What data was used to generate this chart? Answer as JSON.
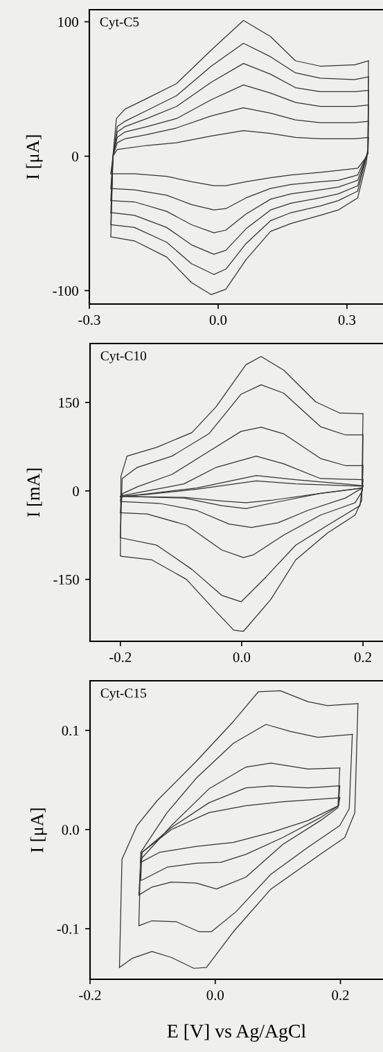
{
  "chart_data": [
    {
      "type": "line",
      "title": "Cyt-C5",
      "ylabel": "I [μA]",
      "xlim": [
        -0.3,
        0.384
      ],
      "ylim": [
        -110,
        109
      ],
      "xticks": [
        {
          "value": -0.3,
          "label": "-0.3"
        },
        {
          "value": 0,
          "label": "0.0"
        },
        {
          "value": 0.3,
          "label": "0.3"
        }
      ],
      "yticks": [
        {
          "value": -100,
          "label": "-100"
        },
        {
          "value": 0,
          "label": "0"
        },
        {
          "value": 100,
          "label": "100"
        }
      ],
      "series": [
        {
          "color": "#333333",
          "x": [
            -0.25,
            -0.245,
            -0.237,
            -0.217,
            -0.166,
            -0.097,
            -0.016,
            0.059,
            0.122,
            0.18,
            0.238,
            0.318,
            0.35
          ],
          "values": [
            -60,
            0,
            28,
            35,
            43,
            54,
            79,
            101,
            89,
            71,
            67,
            68,
            71
          ]
        },
        {
          "color": "#333333",
          "x": [
            0.35,
            0.349,
            0.345,
            0.325,
            0.28,
            0.238,
            0.17,
            0.122,
            0.065,
            0.018,
            -0.016,
            -0.062,
            -0.12,
            -0.195,
            -0.25
          ],
          "values": [
            71,
            5,
            -5,
            -31,
            -40,
            -44,
            -50,
            -56,
            -77,
            -99,
            -103,
            -94,
            -75,
            -63,
            -60
          ]
        },
        {
          "color": "#333333",
          "x": [
            -0.25,
            -0.245,
            -0.235,
            -0.217,
            -0.166,
            -0.097,
            -0.016,
            0.059,
            0.122,
            0.18,
            0.238,
            0.318,
            0.35
          ],
          "values": [
            -51,
            0,
            22,
            26,
            34,
            45,
            67,
            84,
            74,
            62,
            58,
            57,
            59
          ]
        },
        {
          "color": "#333333",
          "x": [
            0.35,
            0.349,
            0.342,
            0.325,
            0.28,
            0.238,
            0.17,
            0.122,
            0.065,
            0.018,
            -0.01,
            -0.062,
            -0.12,
            -0.195,
            -0.25
          ],
          "values": [
            59,
            5,
            -5,
            -26,
            -33,
            -37,
            -42,
            -48,
            -65,
            -84,
            -88,
            -80,
            -64,
            -53,
            -51
          ]
        },
        {
          "color": "#333333",
          "x": [
            -0.25,
            -0.245,
            -0.235,
            -0.217,
            -0.166,
            -0.097,
            -0.016,
            0.059,
            0.122,
            0.18,
            0.238,
            0.318,
            0.35
          ],
          "values": [
            -42,
            0,
            18,
            22,
            28,
            37,
            55,
            69,
            61,
            51,
            48,
            48,
            49
          ]
        },
        {
          "color": "#333333",
          "x": [
            0.35,
            0.349,
            0.342,
            0.325,
            0.28,
            0.238,
            0.17,
            0.122,
            0.065,
            0.018,
            -0.01,
            -0.062,
            -0.12,
            -0.195,
            -0.25
          ],
          "values": [
            49,
            4,
            -4,
            -22,
            -28,
            -31,
            -35,
            -40,
            -54,
            -70,
            -73,
            -66,
            -53,
            -44,
            -42
          ]
        },
        {
          "color": "#333333",
          "x": [
            -0.25,
            -0.245,
            -0.235,
            -0.217,
            -0.166,
            -0.097,
            -0.016,
            0.059,
            0.122,
            0.18,
            0.238,
            0.318,
            0.35
          ],
          "values": [
            -33,
            0,
            14,
            18,
            22,
            28,
            42,
            53,
            47,
            40,
            37,
            37,
            38
          ]
        },
        {
          "color": "#333333",
          "x": [
            0.35,
            0.349,
            0.342,
            0.325,
            0.28,
            0.238,
            0.17,
            0.122,
            0.065,
            0.018,
            -0.01,
            -0.062,
            -0.12,
            -0.195,
            -0.25
          ],
          "values": [
            38,
            3,
            -3,
            -18,
            -23,
            -25,
            -28,
            -32,
            -43,
            -55,
            -57,
            -51,
            -41,
            -34,
            -33
          ]
        },
        {
          "color": "#333333",
          "x": [
            -0.25,
            -0.245,
            -0.235,
            -0.217,
            -0.166,
            -0.097,
            -0.016,
            0.059,
            0.122,
            0.18,
            0.238,
            0.318,
            0.35
          ],
          "values": [
            -24,
            0,
            10,
            13,
            16,
            21,
            30,
            36,
            32,
            27,
            25,
            25,
            26
          ]
        },
        {
          "color": "#333333",
          "x": [
            0.35,
            0.349,
            0.342,
            0.325,
            0.28,
            0.238,
            0.17,
            0.122,
            0.065,
            0.018,
            -0.01,
            -0.062,
            -0.12,
            -0.195,
            -0.25
          ],
          "values": [
            26,
            2,
            -2,
            -14,
            -18,
            -19,
            -21,
            -24,
            -31,
            -39,
            -40,
            -36,
            -29,
            -25,
            -24
          ]
        },
        {
          "color": "#333333",
          "x": [
            -0.25,
            -0.245,
            -0.235,
            -0.166,
            -0.097,
            -0.016,
            0.059,
            0.122,
            0.18,
            0.238,
            0.318,
            0.35
          ],
          "values": [
            -13,
            0,
            5,
            8,
            10,
            15,
            19,
            17,
            14,
            13,
            13,
            14
          ]
        },
        {
          "color": "#333333",
          "x": [
            0.35,
            0.349,
            0.342,
            0.325,
            0.238,
            0.17,
            0.122,
            0.065,
            0.018,
            -0.01,
            -0.062,
            -0.12,
            -0.195,
            -0.25
          ],
          "values": [
            14,
            2,
            -2,
            -9,
            -12,
            -14,
            -16,
            -19,
            -22,
            -22,
            -19,
            -15,
            -13,
            -13
          ]
        }
      ]
    },
    {
      "type": "line",
      "title": "Cyt-C10",
      "ylabel": "I [mA]",
      "xlim": [
        -0.25,
        0.233
      ],
      "ylim": [
        -255,
        250
      ],
      "xticks": [
        {
          "value": -0.2,
          "label": "-0.2"
        },
        {
          "value": 0,
          "label": "0.0"
        },
        {
          "value": 0.2,
          "label": "0.2"
        }
      ],
      "yticks": [
        {
          "value": -150,
          "label": "-150"
        },
        {
          "value": 0,
          "label": "0"
        },
        {
          "value": 150,
          "label": "150"
        }
      ],
      "series": [
        {
          "color": "#333333",
          "x": [
            -0.2,
            -0.199,
            -0.189,
            -0.14,
            -0.082,
            -0.042,
            0.007,
            0.032,
            0.069,
            0.122,
            0.162,
            0.2
          ],
          "values": [
            -110,
            25,
            59,
            74,
            99,
            143,
            214,
            228,
            205,
            151,
            132,
            131
          ]
        },
        {
          "color": "#333333",
          "x": [
            0.2,
            0.198,
            0.187,
            0.142,
            0.089,
            0.048,
            0.003,
            -0.013,
            -0.042,
            -0.091,
            -0.148,
            -0.197,
            -0.2
          ],
          "values": [
            131,
            -16,
            -41,
            -71,
            -117,
            -184,
            -238,
            -236,
            -205,
            -150,
            -117,
            -111,
            -110
          ]
        },
        {
          "color": "#333333",
          "x": [
            -0.2,
            -0.197,
            -0.172,
            -0.115,
            -0.054,
            -0.001,
            0.032,
            0.069,
            0.13,
            0.171,
            0.2
          ],
          "values": [
            -79,
            21,
            40,
            59,
            97,
            164,
            180,
            166,
            109,
            95,
            95
          ]
        },
        {
          "color": "#333333",
          "x": [
            0.2,
            0.199,
            0.195,
            0.142,
            0.089,
            0.04,
            -0.001,
            -0.033,
            -0.082,
            -0.14,
            -0.197,
            -0.2
          ],
          "values": [
            95,
            10,
            -25,
            -58,
            -92,
            -146,
            -188,
            -177,
            -133,
            -92,
            -80,
            -79
          ]
        },
        {
          "color": "#333333",
          "x": [
            -0.2,
            -0.197,
            -0.172,
            -0.115,
            -0.054,
            -0.001,
            0.032,
            0.069,
            0.13,
            0.171,
            0.2
          ],
          "values": [
            -36,
            -5,
            7,
            28,
            67,
            101,
            108,
            97,
            55,
            43,
            43
          ]
        },
        {
          "color": "#333333",
          "x": [
            0.2,
            0.199,
            0.187,
            0.13,
            0.069,
            0.02,
            0.003,
            -0.033,
            -0.091,
            -0.156,
            -0.2
          ],
          "values": [
            43,
            0,
            -20,
            -41,
            -75,
            -108,
            -113,
            -100,
            -58,
            -39,
            -37
          ]
        },
        {
          "color": "#333333",
          "x": [
            -0.2,
            -0.197,
            -0.156,
            -0.095,
            -0.042,
            0.024,
            0.069,
            0.13,
            0.2
          ],
          "values": [
            -15,
            -8,
            0,
            12,
            40,
            59,
            46,
            21,
            19
          ]
        },
        {
          "color": "#333333",
          "x": [
            0.2,
            0.199,
            0.171,
            0.109,
            0.06,
            0.016,
            -0.021,
            -0.074,
            -0.136,
            -0.2
          ],
          "values": [
            19,
            5,
            -12,
            -33,
            -54,
            -62,
            -56,
            -33,
            -21,
            -18
          ]
        },
        {
          "color": "#333333",
          "x": [
            -0.2,
            -0.156,
            -0.074,
            0.024,
            0.089,
            0.2
          ],
          "values": [
            -10,
            -5,
            5,
            26,
            19,
            9
          ]
        },
        {
          "color": "#333333",
          "x": [
            0.2,
            0.199,
            0.13,
            0.048,
            0.007,
            -0.033,
            -0.095,
            -0.2
          ],
          "values": [
            9,
            5,
            -4,
            -21,
            -30,
            -25,
            -12,
            -9
          ]
        },
        {
          "color": "#333333",
          "x": [
            -0.2,
            -0.156,
            -0.074,
            0.024,
            0.089,
            0.2
          ],
          "values": [
            -9,
            -6,
            3,
            17,
            12,
            8
          ]
        },
        {
          "color": "#333333",
          "x": [
            0.2,
            0.199,
            0.13,
            0.048,
            0.007,
            -0.033,
            -0.095,
            -0.2
          ],
          "values": [
            8,
            5,
            -4,
            -16,
            -20,
            -17,
            -11,
            -9
          ]
        }
      ]
    },
    {
      "type": "line",
      "title": "Cyt-C15",
      "ylabel": "I [μA]",
      "xlabel": "E [V] vs Ag/AgCl",
      "xlim": [
        -0.2,
        0.268
      ],
      "ylim": [
        -0.151,
        0.15
      ],
      "xticks": [
        {
          "value": -0.2,
          "label": "-0.2"
        },
        {
          "value": 0,
          "label": "0.0"
        },
        {
          "value": 0.2,
          "label": "0.2"
        }
      ],
      "yticks": [
        {
          "value": -0.1,
          "label": "-0.1"
        },
        {
          "value": 0,
          "label": "0.0"
        },
        {
          "value": 0.1,
          "label": "0.1"
        }
      ],
      "series": [
        {
          "color": "#333333",
          "x": [
            -0.153,
            -0.149,
            -0.125,
            -0.093,
            -0.03,
            0.029,
            0.069,
            0.104,
            0.148,
            0.179,
            0.228
          ],
          "values": [
            -0.139,
            -0.03,
            0.004,
            0.029,
            0.069,
            0.109,
            0.139,
            0.14,
            0.129,
            0.125,
            0.127
          ]
        },
        {
          "color": "#333333",
          "x": [
            0.228,
            0.223,
            0.207,
            0.168,
            0.089,
            0.029,
            -0.014,
            -0.034,
            -0.07,
            -0.101,
            -0.133,
            -0.153
          ],
          "values": [
            0.127,
            0.017,
            -0.008,
            -0.025,
            -0.06,
            -0.103,
            -0.139,
            -0.14,
            -0.129,
            -0.123,
            -0.13,
            -0.139
          ]
        },
        {
          "color": "#333333",
          "x": [
            -0.122,
            -0.119,
            -0.077,
            -0.03,
            0.029,
            0.081,
            0.12,
            0.164,
            0.219
          ],
          "values": [
            -0.097,
            -0.023,
            0.017,
            0.052,
            0.087,
            0.106,
            0.099,
            0.093,
            0.096
          ]
        },
        {
          "color": "#333333",
          "x": [
            0.219,
            0.214,
            0.199,
            0.148,
            0.089,
            0.033,
            -0.006,
            -0.026,
            -0.062,
            -0.101,
            -0.122
          ],
          "values": [
            0.096,
            0.021,
            0.004,
            -0.018,
            -0.045,
            -0.083,
            -0.103,
            -0.103,
            -0.093,
            -0.092,
            -0.097
          ]
        },
        {
          "color": "#333333",
          "x": [
            -0.122,
            -0.119,
            -0.07,
            -0.01,
            0.049,
            0.089,
            0.148,
            0.199
          ],
          "values": [
            -0.066,
            -0.03,
            0.004,
            0.041,
            0.063,
            0.067,
            0.061,
            0.062
          ]
        },
        {
          "color": "#333333",
          "x": [
            0.199,
            0.196,
            0.168,
            0.108,
            0.049,
            0.002,
            -0.03,
            -0.07,
            -0.101,
            -0.122
          ],
          "values": [
            0.062,
            0.022,
            0.009,
            -0.015,
            -0.048,
            -0.06,
            -0.054,
            -0.053,
            -0.058,
            -0.066
          ]
        },
        {
          "color": "#333333",
          "x": [
            -0.119,
            -0.117,
            -0.07,
            -0.01,
            0.049,
            0.089,
            0.148,
            0.199
          ],
          "values": [
            -0.051,
            -0.023,
            0.002,
            0.027,
            0.042,
            0.044,
            0.042,
            0.044
          ]
        },
        {
          "color": "#333333",
          "x": [
            0.199,
            0.197,
            0.168,
            0.108,
            0.049,
            0.009,
            -0.03,
            -0.077,
            -0.117,
            -0.119
          ],
          "values": [
            0.044,
            0.024,
            0.012,
            -0.008,
            -0.025,
            -0.033,
            -0.034,
            -0.038,
            -0.051,
            -0.051
          ]
        },
        {
          "color": "#333333",
          "x": [
            -0.119,
            -0.117,
            -0.07,
            -0.01,
            0.049,
            0.108,
            0.199
          ],
          "values": [
            -0.033,
            -0.023,
            0.0,
            0.017,
            0.024,
            0.028,
            0.032
          ]
        },
        {
          "color": "#333333",
          "x": [
            0.199,
            0.197,
            0.148,
            0.089,
            0.029,
            -0.03,
            -0.089,
            -0.119
          ],
          "values": [
            0.032,
            0.024,
            0.009,
            -0.003,
            -0.013,
            -0.017,
            -0.023,
            -0.033
          ]
        }
      ]
    }
  ]
}
